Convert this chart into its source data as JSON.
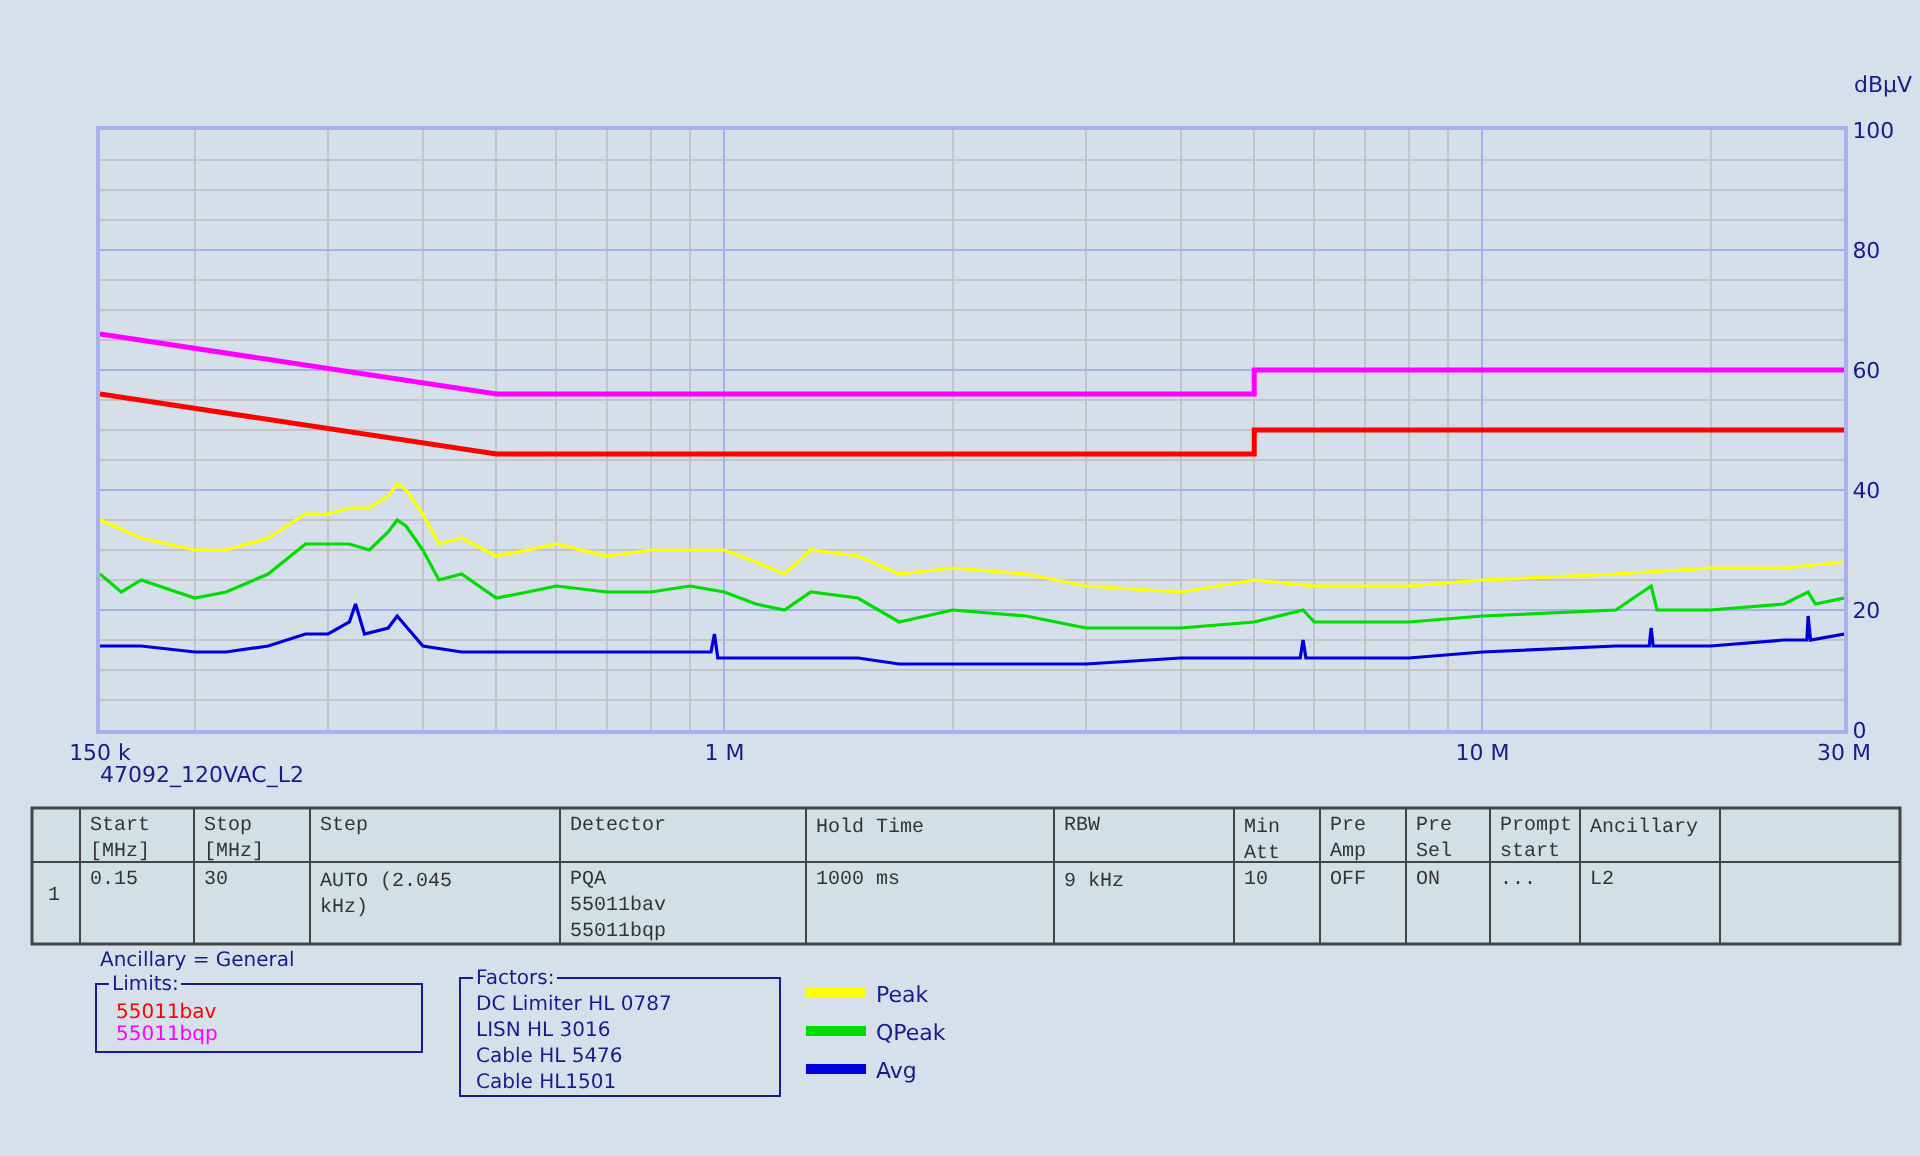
{
  "chart_data": {
    "type": "line",
    "ylabel": "dBµV",
    "log": "x",
    "grid": true,
    "legend": "bottom",
    "marker": "none",
    "line_style": "solid",
    "xlim": [
      0.15,
      30
    ],
    "ylim": [
      0,
      100
    ],
    "xticks": [
      {
        "value": 0.15,
        "label": "150 k"
      },
      {
        "value": 1,
        "label": "1 M"
      },
      {
        "value": 10,
        "label": "10 M"
      },
      {
        "value": 30,
        "label": "30 M"
      }
    ],
    "yticks": [
      0,
      20,
      40,
      60,
      80,
      100
    ],
    "series": [
      {
        "name": "55011bqp",
        "color": "#ff00ff",
        "x": [
          0.15,
          0.5,
          5,
          5,
          30
        ],
        "values": [
          66,
          56,
          56,
          60,
          60
        ]
      },
      {
        "name": "55011bav",
        "color": "#ff0000",
        "x": [
          0.15,
          0.5,
          5,
          5,
          30
        ],
        "values": [
          56,
          46,
          46,
          50,
          50
        ]
      },
      {
        "name": "Peak",
        "color": "#ffff00",
        "x": [
          0.15,
          0.17,
          0.2,
          0.22,
          0.25,
          0.28,
          0.3,
          0.32,
          0.34,
          0.36,
          0.37,
          0.38,
          0.4,
          0.42,
          0.45,
          0.5,
          0.55,
          0.6,
          0.7,
          0.8,
          0.9,
          1.0,
          1.1,
          1.2,
          1.3,
          1.5,
          1.7,
          2,
          2.5,
          3,
          4,
          5,
          6,
          8,
          10,
          15,
          20,
          25,
          30
        ],
        "values": [
          35,
          32,
          30,
          30,
          32,
          36,
          36,
          37,
          37,
          39,
          41,
          40,
          36,
          31,
          32,
          29,
          30,
          31,
          29,
          30,
          30,
          30,
          28,
          26,
          30,
          29,
          26,
          27,
          26,
          24,
          23,
          25,
          24,
          24,
          25,
          26,
          27,
          27,
          28
        ]
      },
      {
        "name": "QPeak",
        "color": "#00dd00",
        "x": [
          0.15,
          0.16,
          0.17,
          0.2,
          0.22,
          0.25,
          0.28,
          0.3,
          0.32,
          0.34,
          0.36,
          0.37,
          0.38,
          0.4,
          0.42,
          0.45,
          0.5,
          0.55,
          0.6,
          0.7,
          0.8,
          0.9,
          1.0,
          1.1,
          1.2,
          1.3,
          1.5,
          1.7,
          2,
          2.5,
          3,
          4,
          5,
          5.8,
          6,
          8,
          10,
          15,
          16.7,
          17,
          20,
          25,
          26.9,
          27.5,
          30
        ],
        "values": [
          26,
          23,
          25,
          22,
          23,
          26,
          31,
          31,
          31,
          30,
          33,
          35,
          34,
          30,
          25,
          26,
          22,
          23,
          24,
          23,
          23,
          24,
          23,
          21,
          20,
          23,
          22,
          18,
          20,
          19,
          17,
          17,
          18,
          20,
          18,
          18,
          19,
          20,
          24,
          20,
          20,
          21,
          23,
          21,
          22
        ]
      },
      {
        "name": "Avg",
        "color": "#0000dd",
        "x": [
          0.15,
          0.17,
          0.2,
          0.22,
          0.25,
          0.28,
          0.3,
          0.32,
          0.326,
          0.335,
          0.36,
          0.37,
          0.4,
          0.45,
          0.5,
          0.6,
          0.7,
          0.9,
          0.96,
          0.97,
          0.98,
          1.2,
          1.5,
          1.7,
          2.5,
          3,
          4,
          5,
          5.75,
          5.8,
          5.85,
          8,
          10,
          15,
          16.6,
          16.7,
          16.8,
          20,
          25,
          26.8,
          26.9,
          27.1,
          30
        ],
        "values": [
          14,
          14,
          13,
          13,
          14,
          16,
          16,
          18,
          21,
          16,
          17,
          19,
          14,
          13,
          13,
          13,
          13,
          13,
          13,
          16,
          12,
          12,
          12,
          11,
          11,
          11,
          12,
          12,
          12,
          15,
          12,
          12,
          13,
          14,
          14,
          17,
          14,
          14,
          15,
          15,
          19,
          15,
          16
        ]
      }
    ],
    "annotations": [
      "47092_120VAC_L2",
      "Start\n[MHz]",
      "Stop\n[MHz]",
      "Step",
      "Detector",
      "Hold Time",
      "RBW",
      "Min\nAtt",
      "Pre\nAmp",
      "Pre\nSel",
      "Prompt\nstart",
      "Ancillary",
      "1",
      "0.15",
      "30",
      "AUTO (2.045\nkHz)",
      "PQA\n55011bav\n55011bqp",
      "1000 ms",
      "9 kHz",
      "10",
      "OFF",
      "ON",
      "...",
      "L2",
      "Ancillary = General",
      "Limits:",
      "Factors:",
      "DC Limiter HL 0787\nLISN HL 3016\nCable HL 5476\nCable HL1501"
    ]
  }
}
